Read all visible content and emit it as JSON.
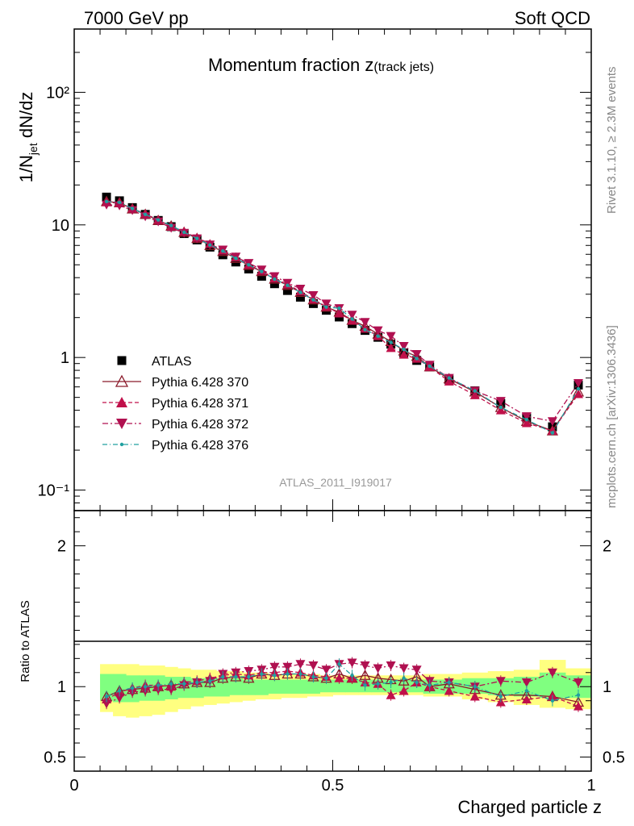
{
  "header": {
    "left": "7000 GeV pp",
    "right": "Soft QCD"
  },
  "side": {
    "rivet": "Rivet 3.1.10, ≥ 2.3M events",
    "mcplots": "mcplots.cern.ch [arXiv:1306.3436]"
  },
  "analysis_id": "ATLAS_2011_I919017",
  "chart_data": [
    {
      "type": "scatter",
      "panel": "main",
      "title": "Momentum fraction z(track jets)",
      "title_main": "Momentum fraction z",
      "title_sub": "(track jets)",
      "ylabel": "1/N_jet dN/dz",
      "ylabel_main": "1/N",
      "ylabel_sub": "jet",
      "ylabel_tail": " dN/dz",
      "yscale": "log",
      "ylim": [
        0.07,
        300
      ],
      "xlim": [
        0,
        1
      ],
      "y_ticks": [
        {
          "v": 0.1,
          "label": "10⁻¹"
        },
        {
          "v": 1,
          "label": "1"
        },
        {
          "v": 10,
          "label": "10"
        },
        {
          "v": 100,
          "label": "10²"
        }
      ],
      "legend_position": "middle-left",
      "x": [
        0.0625,
        0.0875,
        0.1125,
        0.1375,
        0.1625,
        0.1875,
        0.2125,
        0.2375,
        0.2625,
        0.2875,
        0.3125,
        0.3375,
        0.3625,
        0.3875,
        0.4125,
        0.4375,
        0.4625,
        0.4875,
        0.5125,
        0.5375,
        0.5625,
        0.5875,
        0.6125,
        0.6375,
        0.6625,
        0.6875,
        0.725,
        0.775,
        0.825,
        0.875,
        0.925,
        0.975
      ],
      "series": [
        {
          "name": "ATLAS",
          "color": "#000000",
          "marker": "square",
          "values": [
            16.2,
            15.2,
            13.5,
            12.0,
            10.8,
            9.7,
            8.6,
            7.7,
            6.8,
            5.95,
            5.25,
            4.65,
            4.1,
            3.6,
            3.2,
            2.85,
            2.55,
            2.27,
            2.02,
            1.8,
            1.6,
            1.42,
            1.26,
            1.08,
            0.95,
            0.85,
            0.68,
            0.56,
            0.45,
            0.35,
            0.3,
            0.62
          ]
        },
        {
          "name": "Pythia 6.428 370",
          "color": "#8b1a2a",
          "marker": "triangle-up-open",
          "line": "solid",
          "values": [
            15.0,
            14.7,
            13.2,
            12.0,
            10.8,
            9.8,
            8.8,
            7.9,
            7.0,
            6.3,
            5.6,
            4.95,
            4.45,
            3.9,
            3.5,
            3.1,
            2.72,
            2.4,
            2.2,
            1.91,
            1.72,
            1.5,
            1.32,
            1.12,
            1.02,
            0.85,
            0.69,
            0.55,
            0.42,
            0.33,
            0.28,
            0.55
          ]
        },
        {
          "name": "Pythia 6.428 371",
          "color": "#c0104a",
          "marker": "triangle-up",
          "line": "dashed",
          "values": [
            14.8,
            14.6,
            13.3,
            12.1,
            10.9,
            9.7,
            8.9,
            8.0,
            7.2,
            6.4,
            5.7,
            5.0,
            4.5,
            3.95,
            3.55,
            3.15,
            2.75,
            2.42,
            2.15,
            1.9,
            1.65,
            1.45,
            1.18,
            1.05,
            0.98,
            0.85,
            0.66,
            0.52,
            0.4,
            0.32,
            0.28,
            0.53
          ]
        },
        {
          "name": "Pythia 6.428 372",
          "color": "#b01050",
          "marker": "triangle-down",
          "line": "dashdot",
          "values": [
            14.2,
            14.0,
            12.9,
            11.6,
            10.6,
            9.5,
            8.7,
            7.9,
            7.1,
            6.5,
            5.75,
            5.15,
            4.6,
            4.1,
            3.65,
            3.3,
            2.95,
            2.55,
            2.35,
            2.1,
            1.85,
            1.6,
            1.45,
            1.22,
            1.06,
            0.88,
            0.7,
            0.56,
            0.47,
            0.36,
            0.33,
            0.64
          ]
        },
        {
          "name": "Pythia 6.428 376",
          "color": "#20a0a0",
          "marker": "dot",
          "line": "dashdotted",
          "values": [
            15.0,
            14.8,
            13.3,
            12.0,
            10.9,
            9.9,
            8.8,
            7.9,
            7.05,
            6.35,
            5.6,
            5.0,
            4.45,
            3.9,
            3.5,
            3.1,
            2.72,
            2.4,
            2.35,
            1.95,
            1.62,
            1.45,
            1.3,
            1.15,
            0.98,
            0.86,
            0.7,
            0.56,
            0.42,
            0.34,
            0.27,
            0.58
          ]
        }
      ]
    },
    {
      "type": "scatter",
      "panel": "ratio",
      "ylabel": "Ratio to ATLAS",
      "ylim": [
        0.4,
        2.25
      ],
      "xlabel": "Charged particle z",
      "xlim": [
        0,
        1
      ],
      "x_ticks": [
        {
          "v": 0,
          "label": "0"
        },
        {
          "v": 0.5,
          "label": "0.5"
        },
        {
          "v": 1,
          "label": "1"
        }
      ],
      "y_ticks": [
        {
          "v": 0.5,
          "label": "0.5"
        },
        {
          "v": 1,
          "label": "1"
        },
        {
          "v": 2,
          "label": "2"
        }
      ],
      "bands": {
        "yellow_color": "#ffff80",
        "green_color": "#80ff80",
        "edges": [
          0.05,
          0.075,
          0.1,
          0.125,
          0.15,
          0.175,
          0.2,
          0.225,
          0.25,
          0.275,
          0.3,
          0.325,
          0.35,
          0.375,
          0.4,
          0.425,
          0.45,
          0.475,
          0.5,
          0.525,
          0.55,
          0.575,
          0.6,
          0.625,
          0.65,
          0.675,
          0.7,
          0.75,
          0.8,
          0.85,
          0.9,
          0.95,
          1.0
        ],
        "yellow_lo": [
          0.82,
          0.79,
          0.78,
          0.79,
          0.8,
          0.82,
          0.84,
          0.86,
          0.87,
          0.88,
          0.89,
          0.9,
          0.91,
          0.91,
          0.92,
          0.92,
          0.93,
          0.93,
          0.94,
          0.94,
          0.94,
          0.94,
          0.94,
          0.94,
          0.94,
          0.93,
          0.93,
          0.91,
          0.89,
          0.87,
          0.85,
          0.84
        ],
        "yellow_hi": [
          1.16,
          1.16,
          1.16,
          1.15,
          1.15,
          1.14,
          1.13,
          1.12,
          1.12,
          1.11,
          1.11,
          1.1,
          1.1,
          1.09,
          1.09,
          1.09,
          1.09,
          1.08,
          1.08,
          1.08,
          1.08,
          1.08,
          1.08,
          1.08,
          1.08,
          1.09,
          1.09,
          1.1,
          1.11,
          1.12,
          1.19,
          1.13
        ],
        "green_lo": [
          0.9,
          0.89,
          0.89,
          0.9,
          0.9,
          0.91,
          0.92,
          0.92,
          0.93,
          0.93,
          0.94,
          0.94,
          0.94,
          0.95,
          0.95,
          0.95,
          0.95,
          0.96,
          0.96,
          0.96,
          0.96,
          0.96,
          0.96,
          0.96,
          0.96,
          0.95,
          0.95,
          0.95,
          0.94,
          0.93,
          0.92,
          0.92
        ],
        "green_hi": [
          1.09,
          1.09,
          1.08,
          1.08,
          1.08,
          1.07,
          1.07,
          1.06,
          1.06,
          1.06,
          1.06,
          1.05,
          1.05,
          1.05,
          1.05,
          1.05,
          1.05,
          1.05,
          1.05,
          1.05,
          1.05,
          1.05,
          1.05,
          1.05,
          1.05,
          1.05,
          1.05,
          1.06,
          1.06,
          1.07,
          1.1,
          1.08
        ]
      },
      "series": [
        {
          "name": "Pythia 6.428 370",
          "values": [
            0.93,
            0.97,
            0.98,
            0.99,
            1.0,
            1.01,
            1.02,
            1.03,
            1.03,
            1.06,
            1.07,
            1.06,
            1.09,
            1.08,
            1.09,
            1.09,
            1.07,
            1.06,
            1.09,
            1.06,
            1.08,
            1.06,
            1.05,
            1.04,
            1.07,
            1.0,
            1.02,
            0.98,
            0.94,
            0.94,
            0.93,
            0.89
          ]
        },
        {
          "name": "Pythia 6.428 371",
          "values": [
            0.91,
            0.96,
            0.99,
            1.01,
            1.01,
            1.0,
            1.03,
            1.04,
            1.06,
            1.08,
            1.09,
            1.08,
            1.1,
            1.1,
            1.11,
            1.1,
            1.08,
            1.07,
            1.06,
            1.06,
            1.03,
            1.02,
            0.94,
            0.97,
            1.03,
            1.0,
            0.97,
            0.93,
            0.89,
            0.91,
            0.93,
            0.86
          ]
        },
        {
          "name": "Pythia 6.428 372",
          "values": [
            0.88,
            0.92,
            0.96,
            0.97,
            0.98,
            0.98,
            1.01,
            1.03,
            1.04,
            1.09,
            1.1,
            1.11,
            1.12,
            1.14,
            1.14,
            1.16,
            1.15,
            1.12,
            1.16,
            1.17,
            1.15,
            1.13,
            1.15,
            1.13,
            1.12,
            1.04,
            1.03,
            1.0,
            1.04,
            1.03,
            1.1,
            1.03
          ]
        },
        {
          "name": "Pythia 6.428 376",
          "values": [
            0.93,
            0.97,
            0.99,
            1.0,
            1.01,
            1.02,
            1.02,
            1.03,
            1.04,
            1.07,
            1.07,
            1.07,
            1.09,
            1.08,
            1.09,
            1.09,
            1.07,
            1.06,
            1.16,
            1.08,
            1.01,
            1.02,
            1.03,
            1.06,
            1.03,
            1.01,
            1.03,
            1.0,
            0.93,
            0.97,
            0.9,
            0.94
          ]
        }
      ]
    }
  ]
}
